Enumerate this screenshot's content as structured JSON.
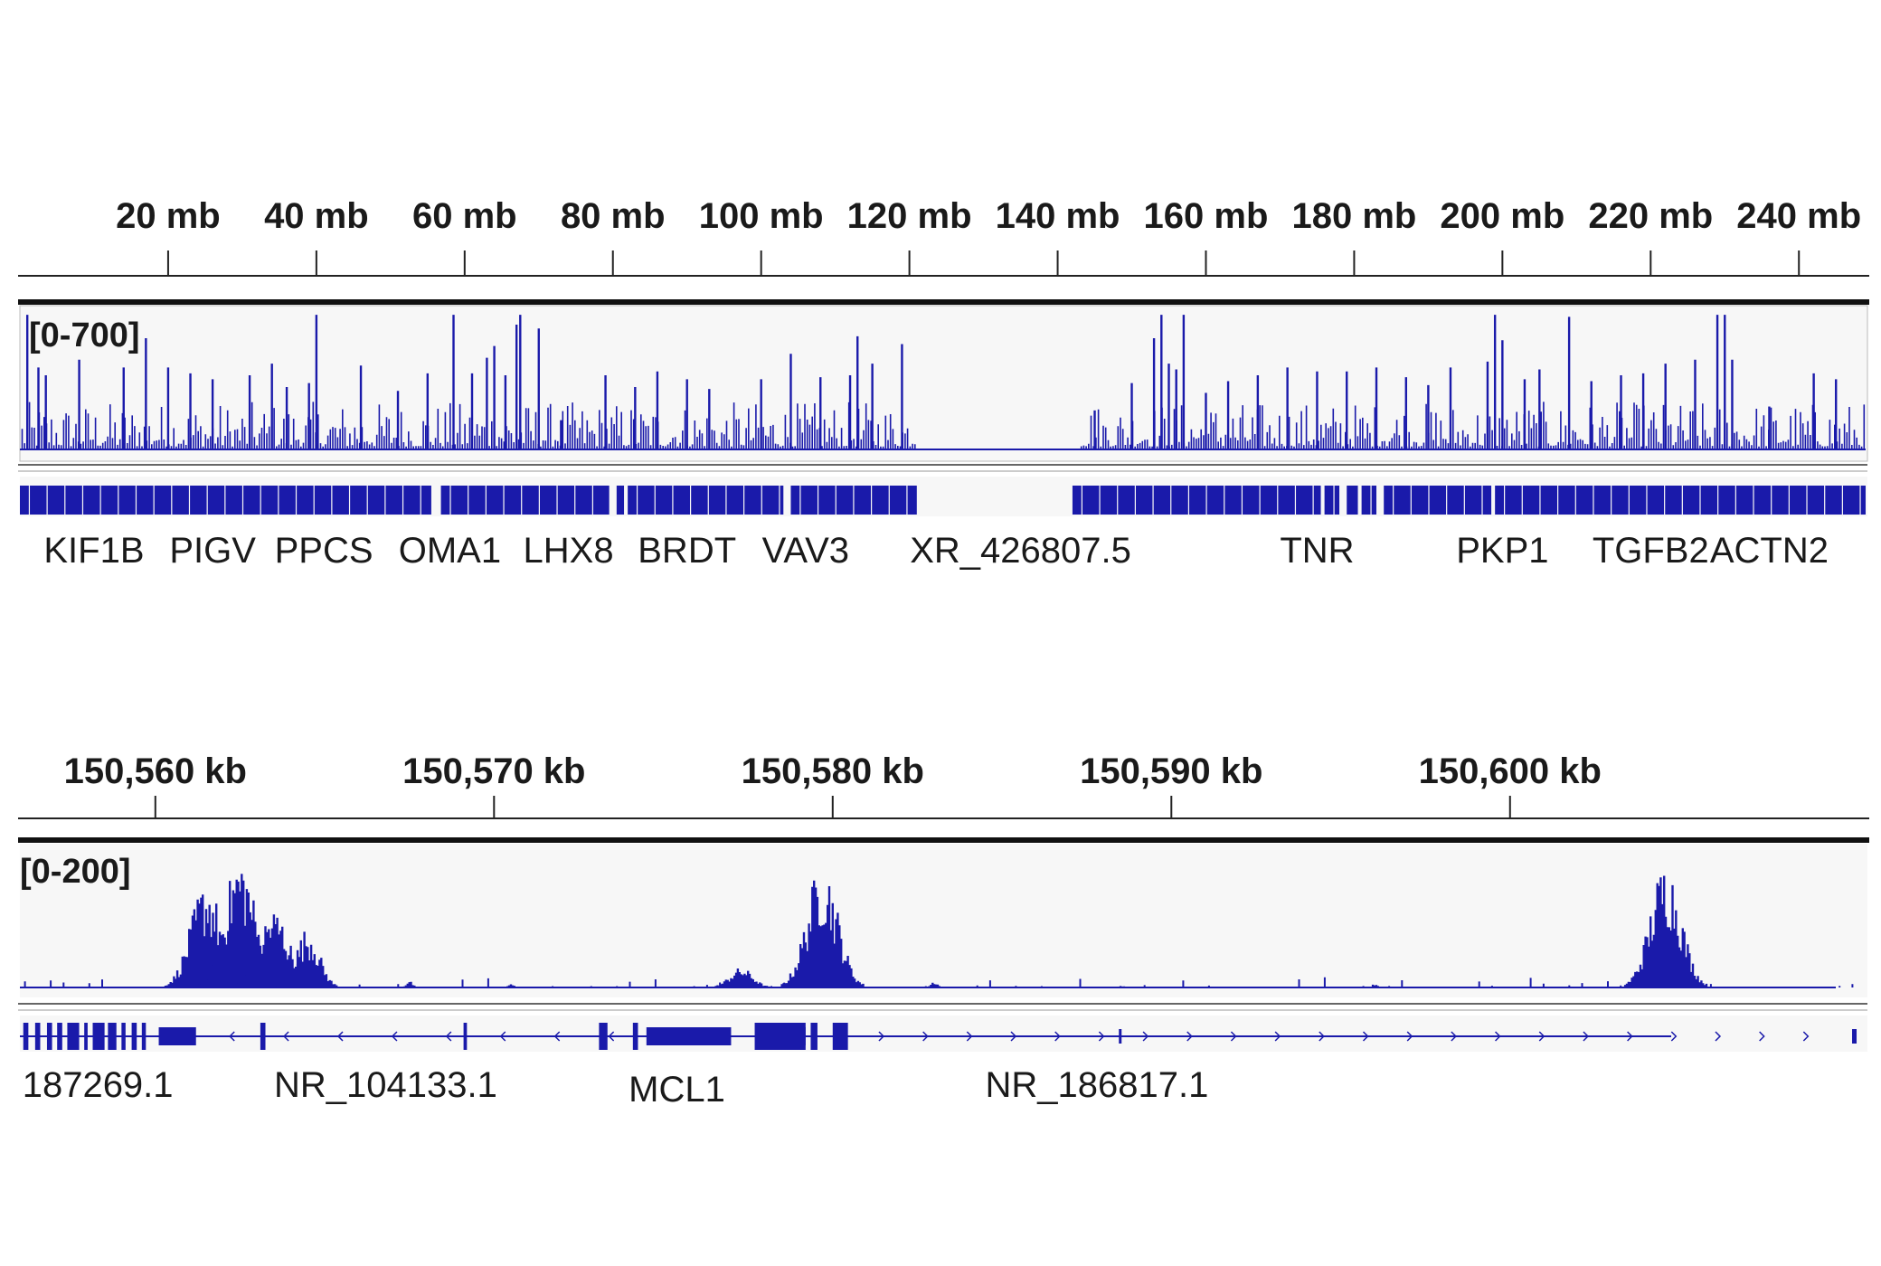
{
  "colors": {
    "signal": "#1a1aaa",
    "axis": "#222222",
    "track_bg": "#f7f7f7",
    "text": "#1a1a1a"
  },
  "chart_data": [
    {
      "type": "area",
      "panel": "chromosome-view",
      "axis_unit": "mb",
      "x_range_mb": [
        0,
        249
      ],
      "ticks": [
        "20 mb",
        "40 mb",
        "60 mb",
        "80 mb",
        "100 mb",
        "120 mb",
        "140 mb",
        "160 mb",
        "180 mb",
        "200 mb",
        "220 mb",
        "240 mb"
      ],
      "tick_values": [
        20,
        40,
        60,
        80,
        100,
        120,
        140,
        160,
        180,
        200,
        220,
        240
      ],
      "data_range_label": "[0-700]",
      "y_range": [
        0,
        700
      ],
      "signal_gaps_mb": [
        [
          121,
          143
        ]
      ],
      "peaks": [
        {
          "x": 1,
          "y": 690
        },
        {
          "x": 2.5,
          "y": 420
        },
        {
          "x": 3.5,
          "y": 380
        },
        {
          "x": 8,
          "y": 460
        },
        {
          "x": 14,
          "y": 420
        },
        {
          "x": 17,
          "y": 570
        },
        {
          "x": 20,
          "y": 420
        },
        {
          "x": 23,
          "y": 390
        },
        {
          "x": 26,
          "y": 360
        },
        {
          "x": 31,
          "y": 380
        },
        {
          "x": 34,
          "y": 440
        },
        {
          "x": 36,
          "y": 320
        },
        {
          "x": 39,
          "y": 340
        },
        {
          "x": 40,
          "y": 690
        },
        {
          "x": 46,
          "y": 430
        },
        {
          "x": 51,
          "y": 300
        },
        {
          "x": 55,
          "y": 390
        },
        {
          "x": 58.5,
          "y": 690
        },
        {
          "x": 61,
          "y": 390
        },
        {
          "x": 63,
          "y": 470
        },
        {
          "x": 64,
          "y": 530
        },
        {
          "x": 65.5,
          "y": 380
        },
        {
          "x": 67,
          "y": 640
        },
        {
          "x": 67.5,
          "y": 690
        },
        {
          "x": 70,
          "y": 620
        },
        {
          "x": 73,
          "y": 150
        },
        {
          "x": 79,
          "y": 380
        },
        {
          "x": 83,
          "y": 320
        },
        {
          "x": 86,
          "y": 400
        },
        {
          "x": 90,
          "y": 360
        },
        {
          "x": 93,
          "y": 310
        },
        {
          "x": 100,
          "y": 360
        },
        {
          "x": 104,
          "y": 490
        },
        {
          "x": 108,
          "y": 370
        },
        {
          "x": 112,
          "y": 380
        },
        {
          "x": 113,
          "y": 580
        },
        {
          "x": 115,
          "y": 440
        },
        {
          "x": 119,
          "y": 540
        },
        {
          "x": 145,
          "y": 200
        },
        {
          "x": 150,
          "y": 340
        },
        {
          "x": 153,
          "y": 570
        },
        {
          "x": 154,
          "y": 690
        },
        {
          "x": 155,
          "y": 440
        },
        {
          "x": 156,
          "y": 410
        },
        {
          "x": 157,
          "y": 690
        },
        {
          "x": 160,
          "y": 290
        },
        {
          "x": 163,
          "y": 350
        },
        {
          "x": 167,
          "y": 380
        },
        {
          "x": 171,
          "y": 420
        },
        {
          "x": 175,
          "y": 400
        },
        {
          "x": 179,
          "y": 400
        },
        {
          "x": 183,
          "y": 420
        },
        {
          "x": 187,
          "y": 370
        },
        {
          "x": 190,
          "y": 330
        },
        {
          "x": 193,
          "y": 420
        },
        {
          "x": 198,
          "y": 450
        },
        {
          "x": 199,
          "y": 690
        },
        {
          "x": 200,
          "y": 560
        },
        {
          "x": 203,
          "y": 360
        },
        {
          "x": 205,
          "y": 410
        },
        {
          "x": 209,
          "y": 680
        },
        {
          "x": 212,
          "y": 350
        },
        {
          "x": 216,
          "y": 380
        },
        {
          "x": 219,
          "y": 390
        },
        {
          "x": 222,
          "y": 440
        },
        {
          "x": 226,
          "y": 460
        },
        {
          "x": 229,
          "y": 690
        },
        {
          "x": 230,
          "y": 690
        },
        {
          "x": 231,
          "y": 460
        },
        {
          "x": 236,
          "y": 220
        },
        {
          "x": 242,
          "y": 390
        },
        {
          "x": 245,
          "y": 360
        }
      ],
      "gene_labels": [
        "KIF1B",
        "PIGV",
        "PPCS",
        "OMA1",
        "LHX8",
        "BRDT",
        "VAV3",
        "XR_426807.5",
        "TNR",
        "PKP1",
        "TGFB2",
        "ACTN2"
      ],
      "gene_label_mb": [
        10,
        26,
        41,
        58,
        74,
        90,
        106,
        135,
        175,
        200,
        220,
        236
      ],
      "gene_blocks_mb": [
        [
          0,
          55.5
        ],
        [
          56.8,
          79.5
        ],
        [
          80.5,
          81.5
        ],
        [
          82,
          103
        ],
        [
          104,
          121
        ],
        [
          142,
          175.5
        ],
        [
          176,
          178
        ],
        [
          179,
          180.5
        ],
        [
          181,
          183
        ],
        [
          184,
          198.5
        ],
        [
          199,
          249
        ]
      ]
    },
    {
      "type": "area",
      "panel": "locus-view",
      "axis_unit": "kb",
      "x_range_kb": [
        150556,
        150610.5
      ],
      "ticks": [
        "150,560 kb",
        "150,570 kb",
        "150,580 kb",
        "150,590 kb",
        "150,600 kb"
      ],
      "tick_values": [
        150560,
        150570,
        150580,
        150590,
        150600
      ],
      "data_range_label": "[0-200]",
      "y_range": [
        0,
        200
      ],
      "peaks": [
        {
          "x": 150561.5,
          "y": 160
        },
        {
          "x": 150562.5,
          "y": 200
        },
        {
          "x": 150563.5,
          "y": 120
        },
        {
          "x": 150564.5,
          "y": 90
        },
        {
          "x": 150567.5,
          "y": 10
        },
        {
          "x": 150570.5,
          "y": 5
        },
        {
          "x": 150577.3,
          "y": 30
        },
        {
          "x": 150579.7,
          "y": 190
        },
        {
          "x": 150583,
          "y": 10
        },
        {
          "x": 150588.5,
          "y": 3
        },
        {
          "x": 150596,
          "y": 5
        },
        {
          "x": 150604.6,
          "y": 190
        }
      ],
      "gene_labels": [
        "187269.1",
        "NR_104133.1",
        "MCL1",
        "NR_186817.1"
      ],
      "gene_label_kb": [
        150558.3,
        150566.8,
        150575.4,
        150587.8
      ]
    }
  ]
}
